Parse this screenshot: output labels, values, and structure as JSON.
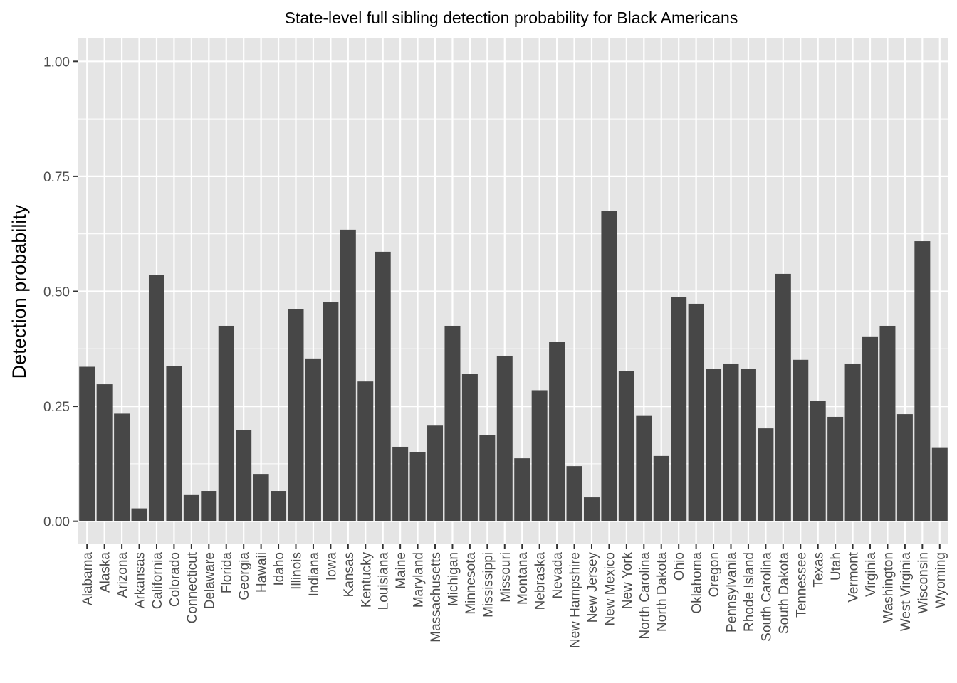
{
  "chart_data": {
    "type": "bar",
    "title": "State-level full sibling detection probability for Black Americans",
    "xlabel": "",
    "ylabel": "Detection probability",
    "ylim": [
      -0.05,
      1.05
    ],
    "yticks": [
      0,
      0.25,
      0.5,
      0.75,
      1.0
    ],
    "ytick_labels": [
      "0.00",
      "0.25",
      "0.50",
      "0.75",
      "1.00"
    ],
    "grid": true,
    "bar_color": "#474747",
    "panel_color": "#e5e5e5",
    "grid_color": "#ffffff",
    "categories": [
      "Alabama",
      "Alaska",
      "Arizona",
      "Arkansas",
      "California",
      "Colorado",
      "Connecticut",
      "Delaware",
      "Florida",
      "Georgia",
      "Hawaii",
      "Idaho",
      "Illinois",
      "Indiana",
      "Iowa",
      "Kansas",
      "Kentucky",
      "Louisiana",
      "Maine",
      "Maryland",
      "Massachusetts",
      "Michigan",
      "Minnesota",
      "Mississippi",
      "Missouri",
      "Montana",
      "Nebraska",
      "Nevada",
      "New Hampshire",
      "New Jersey",
      "New Mexico",
      "New York",
      "North Carolina",
      "North Dakota",
      "Ohio",
      "Oklahoma",
      "Oregon",
      "Pennsylvania",
      "Rhode Island",
      "South Carolina",
      "South Dakota",
      "Tennessee",
      "Texas",
      "Utah",
      "Vermont",
      "Virginia",
      "Washington",
      "West Virginia",
      "Wisconsin",
      "Wyoming"
    ],
    "values": [
      0.336,
      0.298,
      0.234,
      0.028,
      0.535,
      0.338,
      0.057,
      0.066,
      0.425,
      0.198,
      0.103,
      0.066,
      0.462,
      0.354,
      0.476,
      0.634,
      0.304,
      0.586,
      0.162,
      0.151,
      0.208,
      0.425,
      0.321,
      0.188,
      0.36,
      0.137,
      0.285,
      0.39,
      0.12,
      0.052,
      0.675,
      0.326,
      0.229,
      0.142,
      0.487,
      0.473,
      0.332,
      0.343,
      0.332,
      0.202,
      0.538,
      0.351,
      0.262,
      0.227,
      0.343,
      0.402,
      0.425,
      0.233,
      0.609,
      0.161
    ]
  }
}
